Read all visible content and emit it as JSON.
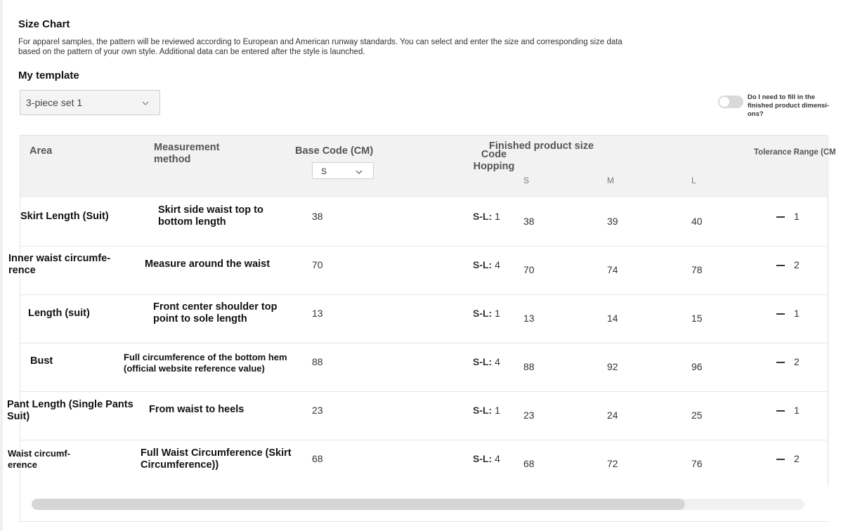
{
  "header": {
    "title": "Size Chart",
    "description": "For apparel samples, the pattern will be reviewed according to European and American runway standards. You can select and enter the size and corresponding size data based on the pattern of your own style. Additional data can be entered after the style is launched."
  },
  "template": {
    "label": "My template",
    "selected": "3-piece set 1"
  },
  "toggle": {
    "label": "Do I need to fill in the finished product dimensi-ons?",
    "on": false
  },
  "table": {
    "headers": {
      "area": "Area",
      "method": "Measurement method",
      "base_code": "Base Code (CM)",
      "code_hopping": "Code Hopping",
      "finished_size": "Finished product size",
      "tolerance": "Tolerance Range (CM"
    },
    "base_size": "S",
    "sizes": [
      "S",
      "M",
      "L"
    ],
    "rows": [
      {
        "area": "Skirt Length (Suit)",
        "method": "Skirt side waist top to bottom length",
        "base": "38",
        "hop_label": "S-L:",
        "hop_value": "1",
        "s": "38",
        "m": "39",
        "l": "40",
        "tol": "1"
      },
      {
        "area": "Inner waist circumfe-rence",
        "method": "Measure around the waist",
        "base": "70",
        "hop_label": "S-L:",
        "hop_value": "4",
        "s": "70",
        "m": "74",
        "l": "78",
        "tol": "2"
      },
      {
        "area": "Length (suit)",
        "method": "Front center shoulder top point to sole length",
        "base": "13",
        "hop_label": "S-L:",
        "hop_value": "1",
        "s": "13",
        "m": "14",
        "l": "15",
        "tol": "1"
      },
      {
        "area": "Bust",
        "method": "Full circumference of the bottom hem (official website reference value)",
        "base": "88",
        "hop_label": "S-L:",
        "hop_value": "4",
        "s": "88",
        "m": "92",
        "l": "96",
        "tol": "2"
      },
      {
        "area": "Pant Length (Single Pants Suit)",
        "method": "From waist to heels",
        "base": "23",
        "hop_label": "S-L:",
        "hop_value": "1",
        "s": "23",
        "m": "24",
        "l": "25",
        "tol": "1"
      },
      {
        "area": "Waist circumf-erence",
        "method": "Full Waist Circumference (Skirt Circumference))",
        "base": "68",
        "hop_label": "S-L:",
        "hop_value": "4",
        "s": "68",
        "m": "72",
        "l": "76",
        "tol": "2"
      }
    ]
  },
  "scrollbar": {
    "position_fraction": 0.0,
    "visible_fraction": 0.845
  }
}
